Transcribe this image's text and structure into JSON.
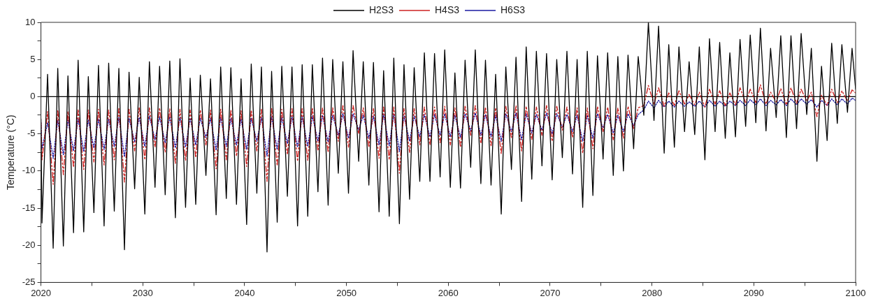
{
  "chart_data": {
    "type": "line",
    "ylabel": "Temperature (°C)",
    "legend": "top",
    "grid": false,
    "marker": "none",
    "xlim": [
      2020,
      2100
    ],
    "xticks": [
      2020,
      {
        "value": 2025,
        "label": null
      },
      2030,
      {
        "value": 2035,
        "label": null
      },
      2040,
      {
        "value": 2045,
        "label": null
      },
      2050,
      {
        "value": 2055,
        "label": null
      },
      2060,
      {
        "value": 2065,
        "label": null
      },
      2070,
      {
        "value": 2075,
        "label": null
      },
      2080,
      {
        "value": 2085,
        "label": null
      },
      2090,
      {
        "value": 2095,
        "label": null
      },
      2100
    ],
    "ylim": [
      -25,
      10
    ],
    "yticks": [
      -25,
      {
        "value": -22.5,
        "label": null
      },
      -20,
      {
        "value": -17.5,
        "label": null
      },
      -15,
      {
        "value": -12.5,
        "label": null
      },
      -10,
      {
        "value": -7.5,
        "label": null
      },
      -5,
      {
        "value": -2.5,
        "label": null
      },
      0,
      {
        "value": 2.5,
        "label": null
      },
      5,
      {
        "value": 7.5,
        "label": null
      },
      10
    ],
    "ref_lines": [
      {
        "axis": "y",
        "value": 0,
        "label": null,
        "color": "#000000",
        "line_style": "solid"
      }
    ],
    "x": [
      2020,
      2020.1,
      2020.65,
      2021.2,
      2021.65,
      2022.2,
      2022.65,
      2023.2,
      2023.65,
      2024.2,
      2024.65,
      2025.2,
      2025.65,
      2026.2,
      2026.65,
      2027.2,
      2027.65,
      2028.2,
      2028.65,
      2029.2,
      2029.65,
      2030.2,
      2030.65,
      2031.2,
      2031.65,
      2032.2,
      2032.65,
      2033.2,
      2033.65,
      2034.2,
      2034.65,
      2035.2,
      2035.65,
      2036.2,
      2036.65,
      2037.2,
      2037.65,
      2038.2,
      2038.65,
      2039.2,
      2039.65,
      2040.2,
      2040.65,
      2041.2,
      2041.65,
      2042.2,
      2042.65,
      2043.2,
      2043.65,
      2044.2,
      2044.65,
      2045.2,
      2045.65,
      2046.2,
      2046.65,
      2047.2,
      2047.65,
      2048.2,
      2048.65,
      2049.2,
      2049.65,
      2050.2,
      2050.65,
      2051.2,
      2051.65,
      2052.2,
      2052.65,
      2053.2,
      2053.65,
      2054.2,
      2054.65,
      2055.2,
      2055.65,
      2056.2,
      2056.65,
      2057.2,
      2057.65,
      2058.2,
      2058.65,
      2059.2,
      2059.65,
      2060.2,
      2060.65,
      2061.2,
      2061.65,
      2062.2,
      2062.65,
      2063.2,
      2063.65,
      2064.2,
      2064.65,
      2065.2,
      2065.65,
      2066.2,
      2066.65,
      2067.2,
      2067.65,
      2068.2,
      2068.65,
      2069.2,
      2069.65,
      2070.2,
      2070.65,
      2071.2,
      2071.65,
      2072.2,
      2072.65,
      2073.2,
      2073.65,
      2074.2,
      2074.65,
      2075.2,
      2075.65,
      2076.2,
      2076.65,
      2077.2,
      2077.65,
      2078.2,
      2078.65,
      2079.2,
      2079.65,
      2080.2,
      2080.65,
      2081.2,
      2081.65,
      2082.2,
      2082.65,
      2083.2,
      2083.65,
      2084.2,
      2084.65,
      2085.2,
      2085.65,
      2086.2,
      2086.65,
      2087.2,
      2087.65,
      2088.2,
      2088.65,
      2089.2,
      2089.65,
      2090.2,
      2090.65,
      2091.2,
      2091.65,
      2092.2,
      2092.65,
      2093.2,
      2093.65,
      2094.2,
      2094.65,
      2095.2,
      2095.65,
      2096.2,
      2096.65,
      2097.2,
      2097.65,
      2098.2,
      2098.65,
      2099.2,
      2099.65,
      2100
    ],
    "series": [
      {
        "name": "H2S3",
        "color": "#000000",
        "line_style": "solid",
        "values": [
          -3,
          -17,
          3.0,
          -20.4,
          3.8,
          -20.1,
          2.8,
          -18.3,
          4.9,
          -18.2,
          2.7,
          -15.6,
          4.2,
          -17.4,
          4.5,
          -15.4,
          3.8,
          -20.6,
          3.3,
          -12.4,
          2.6,
          -15.8,
          4.7,
          -12.2,
          4.1,
          -13.2,
          4.8,
          -16.3,
          5.1,
          -14.9,
          2.5,
          -14.5,
          2.9,
          -10.6,
          2.4,
          -15.9,
          4.0,
          -13.7,
          3.9,
          -14.5,
          2.4,
          -17.2,
          4.4,
          -13.0,
          4.0,
          -20.9,
          3.4,
          -16.9,
          4.1,
          -13.4,
          4.0,
          -17.4,
          4.3,
          -16.1,
          4.3,
          -12.8,
          5.2,
          -14.6,
          5.0,
          -10.3,
          4.7,
          -13.0,
          6.2,
          -8.7,
          4.7,
          -11.9,
          4.6,
          -15.5,
          3.5,
          -16.1,
          5.2,
          -17.1,
          4.3,
          -13.8,
          3.9,
          -11.4,
          5.9,
          -11.4,
          5.8,
          -10.8,
          6.3,
          -12.2,
          3.2,
          -12.3,
          4.9,
          -9.5,
          6.3,
          -11.7,
          4.9,
          -11.9,
          3.0,
          -15.8,
          4.0,
          -9.8,
          5.3,
          -14.1,
          6.7,
          -11.1,
          6.1,
          -9.3,
          5.8,
          -11.2,
          5.0,
          -8.2,
          6.1,
          -10.4,
          5.0,
          -14.9,
          6.1,
          -13.3,
          5.5,
          -8.4,
          5.9,
          -10.6,
          5.4,
          -10.0,
          5.6,
          -7.0,
          5.4,
          -2.5,
          10.0,
          -3.2,
          9.5,
          -7.6,
          7.0,
          -6.8,
          6.7,
          -4.7,
          4.7,
          -5.1,
          6.7,
          -8.5,
          7.8,
          -4.7,
          7.3,
          -5.6,
          5.9,
          -5.4,
          7.7,
          -4.0,
          8.3,
          -3.5,
          9.2,
          -4.6,
          6.5,
          -2.8,
          8.2,
          -5.5,
          8.2,
          -4.3,
          8.5,
          -2.4,
          6.5,
          -8.7,
          4.1,
          -5.9,
          7.2,
          -3.6,
          7.0,
          -2.1,
          6.5,
          1.0
        ]
      },
      {
        "name": "H4S3",
        "color": "#cc2222",
        "line_style": "dashed",
        "values": [
          -3.5,
          -8.5,
          -2.0,
          -11.8,
          -1.8,
          -10.5,
          -2.0,
          -9.5,
          -1.7,
          -9.8,
          -1.8,
          -8.8,
          -1.7,
          -9.2,
          -1.8,
          -8.5,
          -1.6,
          -11.5,
          -1.7,
          -7.3,
          -1.5,
          -8.5,
          -1.5,
          -6.8,
          -1.5,
          -7.5,
          -1.6,
          -9.0,
          -1.7,
          -8.6,
          -1.8,
          -8.2,
          -1.8,
          -6.5,
          -1.8,
          -9.7,
          -1.7,
          -8.5,
          -1.8,
          -8.0,
          -1.9,
          -9.4,
          -1.8,
          -7.3,
          -1.7,
          -11.4,
          -1.6,
          -9.3,
          -1.7,
          -7.8,
          -1.6,
          -8.7,
          -1.6,
          -8.6,
          -1.5,
          -7.3,
          -1.5,
          -7.5,
          -1.5,
          -6.0,
          -1.2,
          -6.8,
          -1.2,
          -5.0,
          -1.5,
          -6.8,
          -1.6,
          -8.3,
          -1.4,
          -8.5,
          -1.4,
          -10.3,
          -1.6,
          -7.5,
          -1.6,
          -6.5,
          -1.4,
          -6.5,
          -1.4,
          -6.2,
          -1.3,
          -6.5,
          -1.5,
          -6.8,
          -1.3,
          -5.2,
          -1.2,
          -6.3,
          -1.4,
          -6.6,
          -1.5,
          -7.7,
          -1.3,
          -5.5,
          -1.2,
          -7.3,
          -1.3,
          -5.8,
          -1.4,
          -5.2,
          -1.2,
          -6.0,
          -1.3,
          -4.5,
          -1.4,
          -5.5,
          -1.5,
          -7.6,
          -1.5,
          -7.0,
          -1.3,
          -4.7,
          -1.4,
          -5.8,
          -1.5,
          -5.6,
          -1.3,
          -4.3,
          -1.5,
          -1.2,
          1.5,
          -1.0,
          1.2,
          -1.3,
          0.5,
          -1.2,
          0.8,
          -1.0,
          0.3,
          -1.1,
          0.6,
          -1.4,
          1.0,
          -1.0,
          0.8,
          -1.2,
          0.5,
          -1.1,
          1.2,
          -0.8,
          1.0,
          -0.8,
          1.6,
          -1.0,
          0.6,
          -0.7,
          1.1,
          -1.1,
          1.2,
          -0.9,
          1.0,
          -0.6,
          0.6,
          -2.7,
          0.2,
          -1.2,
          1.0,
          -0.8,
          0.8,
          -0.6,
          0.9,
          0.5
        ]
      },
      {
        "name": "H6S3",
        "color": "#1a1aa0",
        "line_style": "dotted",
        "values": [
          -3.5,
          -7.0,
          -3.5,
          -8.3,
          -3.2,
          -7.8,
          -3.2,
          -7.3,
          -3.0,
          -7.4,
          -3.1,
          -6.9,
          -3.0,
          -7.1,
          -3.0,
          -6.7,
          -2.8,
          -8.1,
          -2.9,
          -6.1,
          -2.8,
          -6.7,
          -2.6,
          -5.8,
          -2.7,
          -6.2,
          -2.7,
          -6.9,
          -2.8,
          -6.8,
          -2.9,
          -6.5,
          -2.9,
          -5.5,
          -2.9,
          -7.2,
          -2.8,
          -6.7,
          -2.9,
          -6.5,
          -3.0,
          -7.1,
          -2.9,
          -6.0,
          -2.8,
          -8.0,
          -2.7,
          -7.1,
          -2.8,
          -6.3,
          -2.7,
          -6.8,
          -2.7,
          -6.7,
          -2.6,
          -6.0,
          -2.5,
          -6.1,
          -2.5,
          -5.2,
          -2.3,
          -5.6,
          -2.3,
          -4.5,
          -2.5,
          -5.6,
          -2.6,
          -6.5,
          -2.4,
          -6.6,
          -2.4,
          -7.4,
          -2.6,
          -6.0,
          -2.6,
          -5.4,
          -2.4,
          -5.4,
          -2.4,
          -5.2,
          -2.3,
          -5.4,
          -2.5,
          -5.5,
          -2.3,
          -4.6,
          -2.2,
          -5.2,
          -2.4,
          -5.4,
          -2.5,
          -6.0,
          -2.3,
          -4.7,
          -2.2,
          -5.8,
          -2.3,
          -4.9,
          -2.4,
          -4.5,
          -2.2,
          -5.0,
          -2.3,
          -4.1,
          -2.4,
          -4.7,
          -2.5,
          -6.0,
          -2.5,
          -5.6,
          -2.3,
          -4.2,
          -2.4,
          -4.9,
          -2.5,
          -4.7,
          -2.3,
          -3.9,
          -2.4,
          -1.8,
          -0.6,
          -1.5,
          -0.5,
          -1.4,
          -0.6,
          -1.4,
          -0.6,
          -1.3,
          -0.7,
          -1.3,
          -0.6,
          -1.4,
          -0.5,
          -1.3,
          -0.6,
          -1.3,
          -0.6,
          -1.2,
          -0.5,
          -1.2,
          -0.4,
          -1.1,
          -0.3,
          -1.2,
          -0.5,
          -1.1,
          -0.4,
          -1.2,
          -0.3,
          -1.1,
          -0.3,
          -1.0,
          -0.4,
          -1.4,
          -0.5,
          -1.2,
          -0.3,
          -1.1,
          -0.3,
          -1.0,
          -0.2,
          -0.5
        ]
      }
    ]
  }
}
